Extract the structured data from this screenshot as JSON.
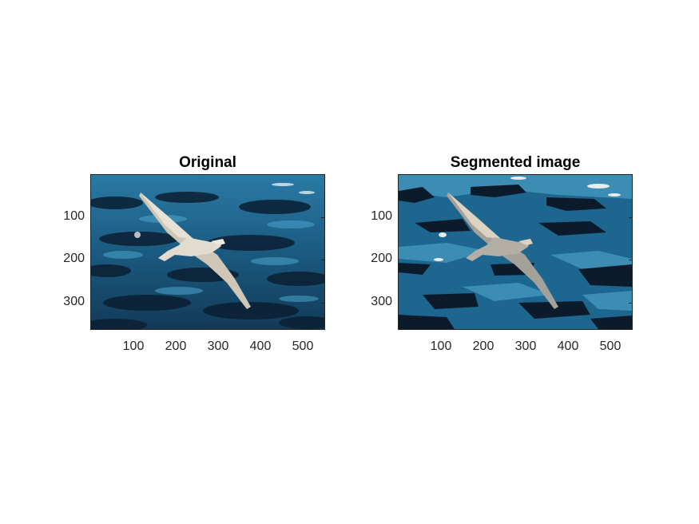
{
  "figure": {
    "background": "#ffffff",
    "panels": [
      {
        "id": "original",
        "title": "Original",
        "image_desc_icon": "seagull-over-ocean-photo",
        "x_ticks": [
          "100",
          "200",
          "300",
          "400",
          "500"
        ],
        "y_ticks": [
          "100",
          "200",
          "300"
        ],
        "x_tick_values": [
          100,
          200,
          300,
          400,
          500
        ],
        "y_tick_values": [
          100,
          200,
          300
        ],
        "x_range": [
          0.5,
          550.5
        ],
        "y_range": [
          0.5,
          365.5
        ]
      },
      {
        "id": "segmented",
        "title": "Segmented image",
        "image_desc_icon": "segmented-seagull-image",
        "x_ticks": [
          "100",
          "200",
          "300",
          "400",
          "500"
        ],
        "y_ticks": [
          "100",
          "200",
          "300"
        ],
        "x_tick_values": [
          100,
          200,
          300,
          400,
          500
        ],
        "y_tick_values": [
          100,
          200,
          300
        ],
        "x_range": [
          0.5,
          550.5
        ],
        "y_range": [
          0.5,
          365.5
        ]
      }
    ],
    "colors": {
      "ocean_dark": "#0a1a2a",
      "ocean_mid": "#1f5f85",
      "ocean_light": "#3a8fb5",
      "bird_light": "#d9d3c7",
      "bird_mid": "#a9a49a",
      "axis": "#262626"
    }
  }
}
